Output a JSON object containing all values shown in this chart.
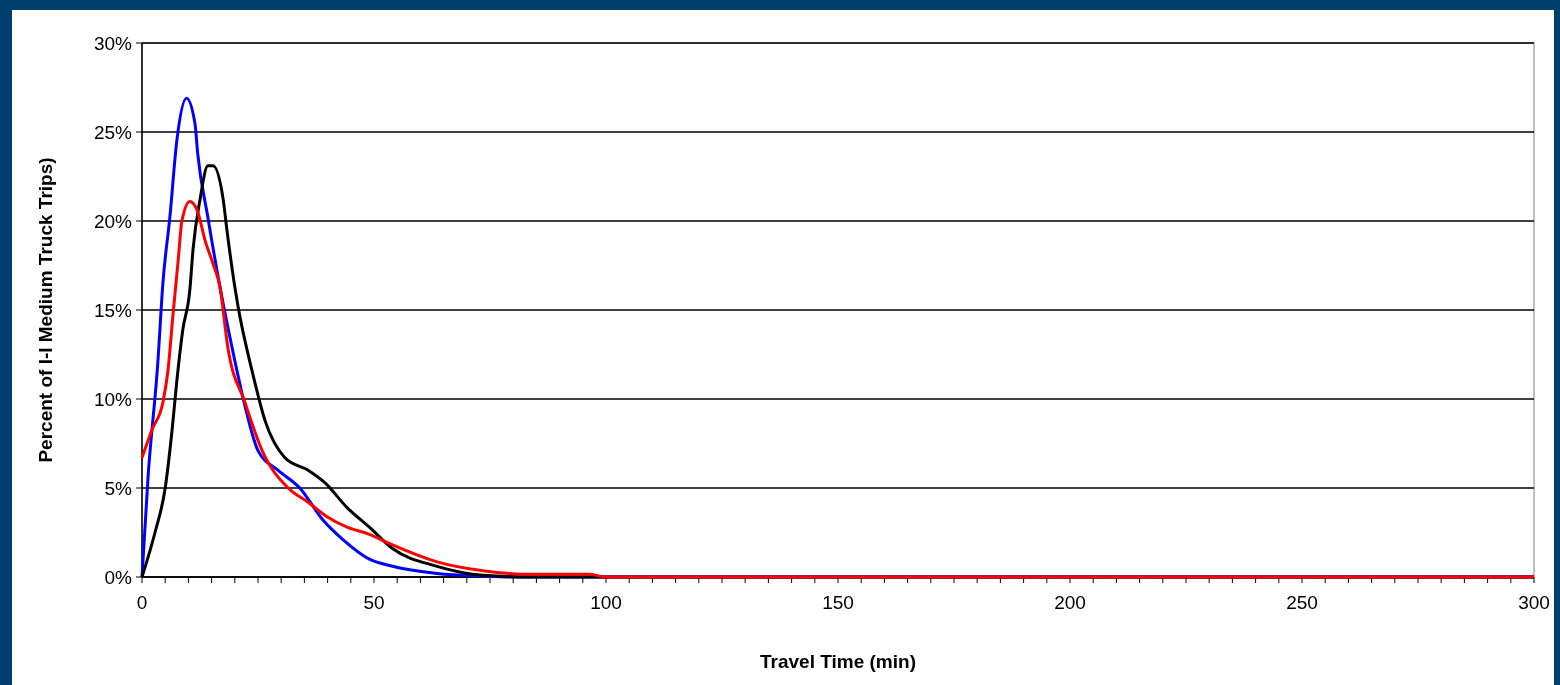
{
  "chart_data": {
    "type": "line",
    "xlabel": "Travel Time (min)",
    "ylabel": "Percent of I-I Medium Truck Trips)",
    "xlim": [
      0,
      300
    ],
    "ylim": [
      0,
      30
    ],
    "xticks": [
      0,
      {
        "value": 5,
        "label": null
      },
      {
        "value": 10,
        "label": null
      },
      {
        "value": 15,
        "label": null
      },
      {
        "value": 20,
        "label": null
      },
      {
        "value": 25,
        "label": null
      },
      {
        "value": 30,
        "label": null
      },
      {
        "value": 35,
        "label": null
      },
      {
        "value": 40,
        "label": null
      },
      {
        "value": 45,
        "label": null
      },
      50,
      {
        "value": 55,
        "label": null
      },
      {
        "value": 60,
        "label": null
      },
      {
        "value": 65,
        "label": null
      },
      {
        "value": 70,
        "label": null
      },
      {
        "value": 75,
        "label": null
      },
      {
        "value": 80,
        "label": null
      },
      {
        "value": 85,
        "label": null
      },
      {
        "value": 90,
        "label": null
      },
      {
        "value": 95,
        "label": null
      },
      100,
      {
        "value": 105,
        "label": null
      },
      {
        "value": 110,
        "label": null
      },
      {
        "value": 115,
        "label": null
      },
      {
        "value": 120,
        "label": null
      },
      {
        "value": 125,
        "label": null
      },
      {
        "value": 130,
        "label": null
      },
      {
        "value": 135,
        "label": null
      },
      {
        "value": 140,
        "label": null
      },
      {
        "value": 145,
        "label": null
      },
      150,
      {
        "value": 155,
        "label": null
      },
      {
        "value": 160,
        "label": null
      },
      {
        "value": 165,
        "label": null
      },
      {
        "value": 170,
        "label": null
      },
      {
        "value": 175,
        "label": null
      },
      {
        "value": 180,
        "label": null
      },
      {
        "value": 185,
        "label": null
      },
      {
        "value": 190,
        "label": null
      },
      {
        "value": 195,
        "label": null
      },
      200,
      {
        "value": 205,
        "label": null
      },
      {
        "value": 210,
        "label": null
      },
      {
        "value": 215,
        "label": null
      },
      {
        "value": 220,
        "label": null
      },
      {
        "value": 225,
        "label": null
      },
      {
        "value": 230,
        "label": null
      },
      {
        "value": 235,
        "label": null
      },
      {
        "value": 240,
        "label": null
      },
      {
        "value": 245,
        "label": null
      },
      250,
      {
        "value": 255,
        "label": null
      },
      {
        "value": 260,
        "label": null
      },
      {
        "value": 265,
        "label": null
      },
      {
        "value": 270,
        "label": null
      },
      {
        "value": 275,
        "label": null
      },
      {
        "value": 280,
        "label": null
      },
      {
        "value": 285,
        "label": null
      },
      {
        "value": 290,
        "label": null
      },
      {
        "value": 295,
        "label": null
      },
      300
    ],
    "yticks": [
      {
        "value": 0,
        "label": "0%"
      },
      {
        "value": 5,
        "label": "5%"
      },
      {
        "value": 10,
        "label": "10%"
      },
      {
        "value": 15,
        "label": "15%"
      },
      {
        "value": 20,
        "label": "20%"
      },
      {
        "value": 25,
        "label": "25%"
      },
      {
        "value": 30,
        "label": "30%"
      }
    ],
    "grid": "y",
    "marker": "none",
    "series": [
      {
        "color": "#0000ff",
        "x": [
          0,
          1.3,
          3.4,
          4.5,
          6,
          7.5,
          9.6,
          11.4,
          12,
          14.2,
          16.8,
          19.4,
          22.2,
          25,
          29.3,
          34,
          39,
          43.3,
          49,
          54,
          63.6,
          73.5,
          80,
          300
        ],
        "values": [
          0,
          5.6,
          12,
          16.5,
          20.2,
          24.5,
          26.9,
          25.5,
          23.8,
          20.2,
          16.3,
          12.9,
          9.6,
          7.1,
          6,
          5,
          3.2,
          2.1,
          1,
          0.6,
          0.2,
          0.05,
          0,
          0
        ]
      },
      {
        "color": "#000000",
        "x": [
          0,
          2.8,
          5,
          6.5,
          7.5,
          8.8,
          10.3,
          11,
          12.5,
          14.2,
          15.3,
          17.5,
          18.3,
          20,
          20.7,
          23.7,
          26.5,
          30.8,
          35.8,
          39.4,
          44.2,
          49,
          54,
          63.6,
          73.5,
          85,
          300
        ],
        "values": [
          0,
          2.5,
          5,
          8.3,
          11,
          13.9,
          16.1,
          18.4,
          21.2,
          23.1,
          23.1,
          21.2,
          19.5,
          16.3,
          15.2,
          11.6,
          8.8,
          6.7,
          6,
          5.3,
          3.9,
          2.8,
          1.6,
          0.6,
          0.1,
          0,
          0
        ]
      },
      {
        "color": "#ff0000",
        "x": [
          0,
          2.2,
          4.5,
          5.6,
          6.7,
          7.8,
          8.6,
          10.3,
          11.9,
          13.6,
          15.3,
          16.8,
          18.5,
          22.2,
          25.9,
          31.5,
          35.8,
          39.8,
          44.2,
          49,
          54,
          63.6,
          73.5,
          84,
          96.5,
          98.7,
          100,
          300
        ],
        "values": [
          6.7,
          8.3,
          9.8,
          11.6,
          14.8,
          17.8,
          20,
          21.1,
          20.6,
          18.9,
          17.6,
          16.3,
          12.9,
          9.8,
          7.1,
          5,
          4.2,
          3.4,
          2.8,
          2.4,
          1.8,
          0.85,
          0.35,
          0.15,
          0.15,
          0.05,
          0,
          0
        ]
      }
    ]
  }
}
